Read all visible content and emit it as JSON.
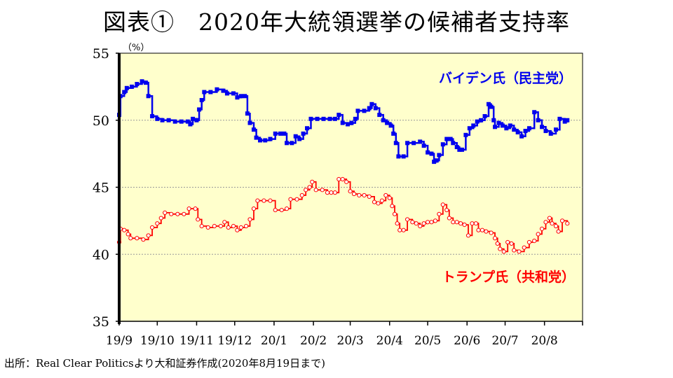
{
  "chart_data": {
    "type": "line",
    "title": "図表①　2020年大統領選挙の候補者支持率",
    "ylabel": "（%）",
    "xlabel": "",
    "ylim": [
      35,
      55
    ],
    "yticks": [
      35,
      40,
      45,
      50,
      55
    ],
    "grid": true,
    "x_tick_labels": [
      "19/9",
      "19/10",
      "19/11",
      "19/12",
      "20/1",
      "20/2",
      "20/3",
      "20/4",
      "20/5",
      "20/6",
      "20/7",
      "20/8"
    ],
    "x_range": [
      "2019-09-01",
      "2020-08-31"
    ],
    "series": [
      {
        "name": "バイデン氏（民主党）",
        "color": "#0000ee",
        "marker": "square",
        "points": [
          [
            "2019-09-01",
            50.4
          ],
          [
            "2019-09-02",
            51.8
          ],
          [
            "2019-09-05",
            52.1
          ],
          [
            "2019-09-07",
            52.4
          ],
          [
            "2019-09-11",
            52.5
          ],
          [
            "2019-09-15",
            52.7
          ],
          [
            "2019-09-19",
            52.9
          ],
          [
            "2019-09-22",
            52.8
          ],
          [
            "2019-09-24",
            51.8
          ],
          [
            "2019-09-27",
            50.3
          ],
          [
            "2019-10-01",
            50.1
          ],
          [
            "2019-10-05",
            50.0
          ],
          [
            "2019-10-10",
            50.0
          ],
          [
            "2019-10-15",
            49.9
          ],
          [
            "2019-10-20",
            49.9
          ],
          [
            "2019-10-25",
            49.9
          ],
          [
            "2019-10-27",
            49.7
          ],
          [
            "2019-10-29",
            50.1
          ],
          [
            "2019-11-01",
            50.0
          ],
          [
            "2019-11-03",
            50.8
          ],
          [
            "2019-11-05",
            51.5
          ],
          [
            "2019-11-07",
            52.1
          ],
          [
            "2019-11-12",
            52.1
          ],
          [
            "2019-11-17",
            52.3
          ],
          [
            "2019-11-22",
            52.2
          ],
          [
            "2019-11-25",
            52.0
          ],
          [
            "2019-11-30",
            52.0
          ],
          [
            "2019-12-03",
            51.7
          ],
          [
            "2019-12-06",
            51.8
          ],
          [
            "2019-12-09",
            51.8
          ],
          [
            "2019-12-11",
            50.5
          ],
          [
            "2019-12-13",
            49.8
          ],
          [
            "2019-12-16",
            49.3
          ],
          [
            "2019-12-18",
            48.7
          ],
          [
            "2019-12-21",
            48.5
          ],
          [
            "2019-12-25",
            48.5
          ],
          [
            "2019-12-29",
            48.6
          ],
          [
            "2020-01-02",
            49.0
          ],
          [
            "2020-01-06",
            49.0
          ],
          [
            "2020-01-09",
            49.0
          ],
          [
            "2020-01-11",
            48.3
          ],
          [
            "2020-01-15",
            48.3
          ],
          [
            "2020-01-18",
            48.8
          ],
          [
            "2020-01-21",
            48.6
          ],
          [
            "2020-01-24",
            49.0
          ],
          [
            "2020-01-27",
            49.4
          ],
          [
            "2020-01-30",
            50.1
          ],
          [
            "2020-02-04",
            50.1
          ],
          [
            "2020-02-09",
            50.1
          ],
          [
            "2020-02-14",
            50.1
          ],
          [
            "2020-02-18",
            50.1
          ],
          [
            "2020-02-21",
            50.4
          ],
          [
            "2020-02-24",
            49.8
          ],
          [
            "2020-02-28",
            49.7
          ],
          [
            "2020-03-02",
            49.8
          ],
          [
            "2020-03-05",
            50.1
          ],
          [
            "2020-03-07",
            50.7
          ],
          [
            "2020-03-12",
            50.7
          ],
          [
            "2020-03-16",
            50.9
          ],
          [
            "2020-03-18",
            51.2
          ],
          [
            "2020-03-21",
            50.9
          ],
          [
            "2020-03-24",
            50.4
          ],
          [
            "2020-03-27",
            50.0
          ],
          [
            "2020-03-30",
            49.8
          ],
          [
            "2020-04-02",
            49.6
          ],
          [
            "2020-04-04",
            49.0
          ],
          [
            "2020-04-06",
            48.3
          ],
          [
            "2020-04-08",
            47.3
          ],
          [
            "2020-04-12",
            47.3
          ],
          [
            "2020-04-15",
            48.3
          ],
          [
            "2020-04-20",
            48.3
          ],
          [
            "2020-04-25",
            48.4
          ],
          [
            "2020-04-28",
            48.1
          ],
          [
            "2020-05-01",
            47.6
          ],
          [
            "2020-05-04",
            47.5
          ],
          [
            "2020-05-06",
            46.9
          ],
          [
            "2020-05-08",
            47.0
          ],
          [
            "2020-05-10",
            47.4
          ],
          [
            "2020-05-13",
            48.2
          ],
          [
            "2020-05-16",
            48.6
          ],
          [
            "2020-05-19",
            48.6
          ],
          [
            "2020-05-21",
            48.3
          ],
          [
            "2020-05-24",
            48.0
          ],
          [
            "2020-05-26",
            47.8
          ],
          [
            "2020-05-28",
            47.8
          ],
          [
            "2020-05-31",
            48.9
          ],
          [
            "2020-06-03",
            49.4
          ],
          [
            "2020-06-06",
            49.6
          ],
          [
            "2020-06-09",
            49.9
          ],
          [
            "2020-06-12",
            50.0
          ],
          [
            "2020-06-15",
            50.3
          ],
          [
            "2020-06-18",
            51.2
          ],
          [
            "2020-06-20",
            51.0
          ],
          [
            "2020-06-22",
            50.0
          ],
          [
            "2020-06-23",
            49.5
          ],
          [
            "2020-06-26",
            49.8
          ],
          [
            "2020-06-29",
            49.6
          ],
          [
            "2020-07-02",
            49.4
          ],
          [
            "2020-07-05",
            49.6
          ],
          [
            "2020-07-08",
            49.3
          ],
          [
            "2020-07-11",
            49.1
          ],
          [
            "2020-07-14",
            48.8
          ],
          [
            "2020-07-17",
            49.2
          ],
          [
            "2020-07-20",
            49.4
          ],
          [
            "2020-07-24",
            50.6
          ],
          [
            "2020-07-27",
            50.0
          ],
          [
            "2020-07-30",
            49.5
          ],
          [
            "2020-08-02",
            49.2
          ],
          [
            "2020-08-06",
            49.0
          ],
          [
            "2020-08-10",
            49.3
          ],
          [
            "2020-08-13",
            50.1
          ],
          [
            "2020-08-17",
            49.9
          ],
          [
            "2020-08-19",
            50.0
          ]
        ]
      },
      {
        "name": "トランプ氏（共和党）",
        "color": "#ff0000",
        "marker": "circle",
        "points": [
          [
            "2019-09-01",
            40.9
          ],
          [
            "2019-09-02",
            41.9
          ],
          [
            "2019-09-05",
            41.8
          ],
          [
            "2019-09-08",
            41.5
          ],
          [
            "2019-09-10",
            41.2
          ],
          [
            "2019-09-15",
            41.2
          ],
          [
            "2019-09-20",
            41.1
          ],
          [
            "2019-09-24",
            41.4
          ],
          [
            "2019-09-27",
            42.0
          ],
          [
            "2019-10-01",
            42.3
          ],
          [
            "2019-10-04",
            42.7
          ],
          [
            "2019-10-07",
            43.1
          ],
          [
            "2019-10-12",
            43.0
          ],
          [
            "2019-10-17",
            43.0
          ],
          [
            "2019-10-22",
            43.0
          ],
          [
            "2019-10-26",
            43.4
          ],
          [
            "2019-10-31",
            43.4
          ],
          [
            "2019-11-02",
            42.6
          ],
          [
            "2019-11-05",
            42.1
          ],
          [
            "2019-11-10",
            42.0
          ],
          [
            "2019-11-15",
            42.1
          ],
          [
            "2019-11-20",
            42.1
          ],
          [
            "2019-11-23",
            42.4
          ],
          [
            "2019-11-26",
            42.0
          ],
          [
            "2019-11-30",
            42.1
          ],
          [
            "2019-12-03",
            41.8
          ],
          [
            "2019-12-06",
            42.0
          ],
          [
            "2019-12-10",
            42.1
          ],
          [
            "2019-12-13",
            42.6
          ],
          [
            "2019-12-16",
            43.4
          ],
          [
            "2019-12-19",
            44.0
          ],
          [
            "2019-12-24",
            44.0
          ],
          [
            "2019-12-29",
            44.0
          ],
          [
            "2020-01-02",
            43.3
          ],
          [
            "2020-01-07",
            43.3
          ],
          [
            "2020-01-11",
            43.4
          ],
          [
            "2020-01-14",
            44.1
          ],
          [
            "2020-01-19",
            44.1
          ],
          [
            "2020-01-23",
            44.4
          ],
          [
            "2020-01-26",
            44.8
          ],
          [
            "2020-01-29",
            45.0
          ],
          [
            "2020-01-31",
            45.4
          ],
          [
            "2020-02-03",
            44.8
          ],
          [
            "2020-02-08",
            44.8
          ],
          [
            "2020-02-12",
            44.6
          ],
          [
            "2020-02-15",
            44.6
          ],
          [
            "2020-02-18",
            44.6
          ],
          [
            "2020-02-21",
            45.6
          ],
          [
            "2020-02-24",
            45.6
          ],
          [
            "2020-02-27",
            45.4
          ],
          [
            "2020-03-01",
            44.7
          ],
          [
            "2020-03-04",
            44.5
          ],
          [
            "2020-03-08",
            44.4
          ],
          [
            "2020-03-12",
            44.4
          ],
          [
            "2020-03-16",
            44.3
          ],
          [
            "2020-03-20",
            43.9
          ],
          [
            "2020-03-23",
            43.8
          ],
          [
            "2020-03-26",
            44.0
          ],
          [
            "2020-03-29",
            44.4
          ],
          [
            "2020-04-01",
            44.2
          ],
          [
            "2020-04-03",
            43.6
          ],
          [
            "2020-04-05",
            43.0
          ],
          [
            "2020-04-07",
            42.3
          ],
          [
            "2020-04-09",
            41.8
          ],
          [
            "2020-04-12",
            41.8
          ],
          [
            "2020-04-15",
            42.6
          ],
          [
            "2020-04-19",
            42.4
          ],
          [
            "2020-04-22",
            42.3
          ],
          [
            "2020-04-25",
            42.1
          ],
          [
            "2020-04-28",
            42.3
          ],
          [
            "2020-05-01",
            42.4
          ],
          [
            "2020-05-04",
            42.4
          ],
          [
            "2020-05-07",
            42.5
          ],
          [
            "2020-05-10",
            43.0
          ],
          [
            "2020-05-13",
            43.7
          ],
          [
            "2020-05-16",
            43.3
          ],
          [
            "2020-05-18",
            42.7
          ],
          [
            "2020-05-21",
            42.4
          ],
          [
            "2020-05-24",
            42.4
          ],
          [
            "2020-05-27",
            42.3
          ],
          [
            "2020-05-30",
            42.2
          ],
          [
            "2020-06-02",
            41.4
          ],
          [
            "2020-06-05",
            42.3
          ],
          [
            "2020-06-08",
            42.3
          ],
          [
            "2020-06-10",
            41.8
          ],
          [
            "2020-06-13",
            41.8
          ],
          [
            "2020-06-16",
            41.7
          ],
          [
            "2020-06-20",
            41.6
          ],
          [
            "2020-06-23",
            41.2
          ],
          [
            "2020-06-25",
            40.8
          ],
          [
            "2020-06-27",
            40.4
          ],
          [
            "2020-06-30",
            40.2
          ],
          [
            "2020-07-03",
            40.9
          ],
          [
            "2020-07-06",
            40.8
          ],
          [
            "2020-07-08",
            40.3
          ],
          [
            "2020-07-12",
            40.2
          ],
          [
            "2020-07-16",
            40.5
          ],
          [
            "2020-07-20",
            40.9
          ],
          [
            "2020-07-24",
            41.0
          ],
          [
            "2020-07-27",
            41.5
          ],
          [
            "2020-07-30",
            41.9
          ],
          [
            "2020-08-02",
            42.4
          ],
          [
            "2020-08-05",
            42.7
          ],
          [
            "2020-08-07",
            42.3
          ],
          [
            "2020-08-10",
            42.1
          ],
          [
            "2020-08-12",
            41.7
          ],
          [
            "2020-08-15",
            42.5
          ],
          [
            "2020-08-19",
            42.3
          ]
        ]
      }
    ]
  },
  "source_note": "出所：Real Clear Politicsより大和証券作成(2020年8月19日まで)"
}
